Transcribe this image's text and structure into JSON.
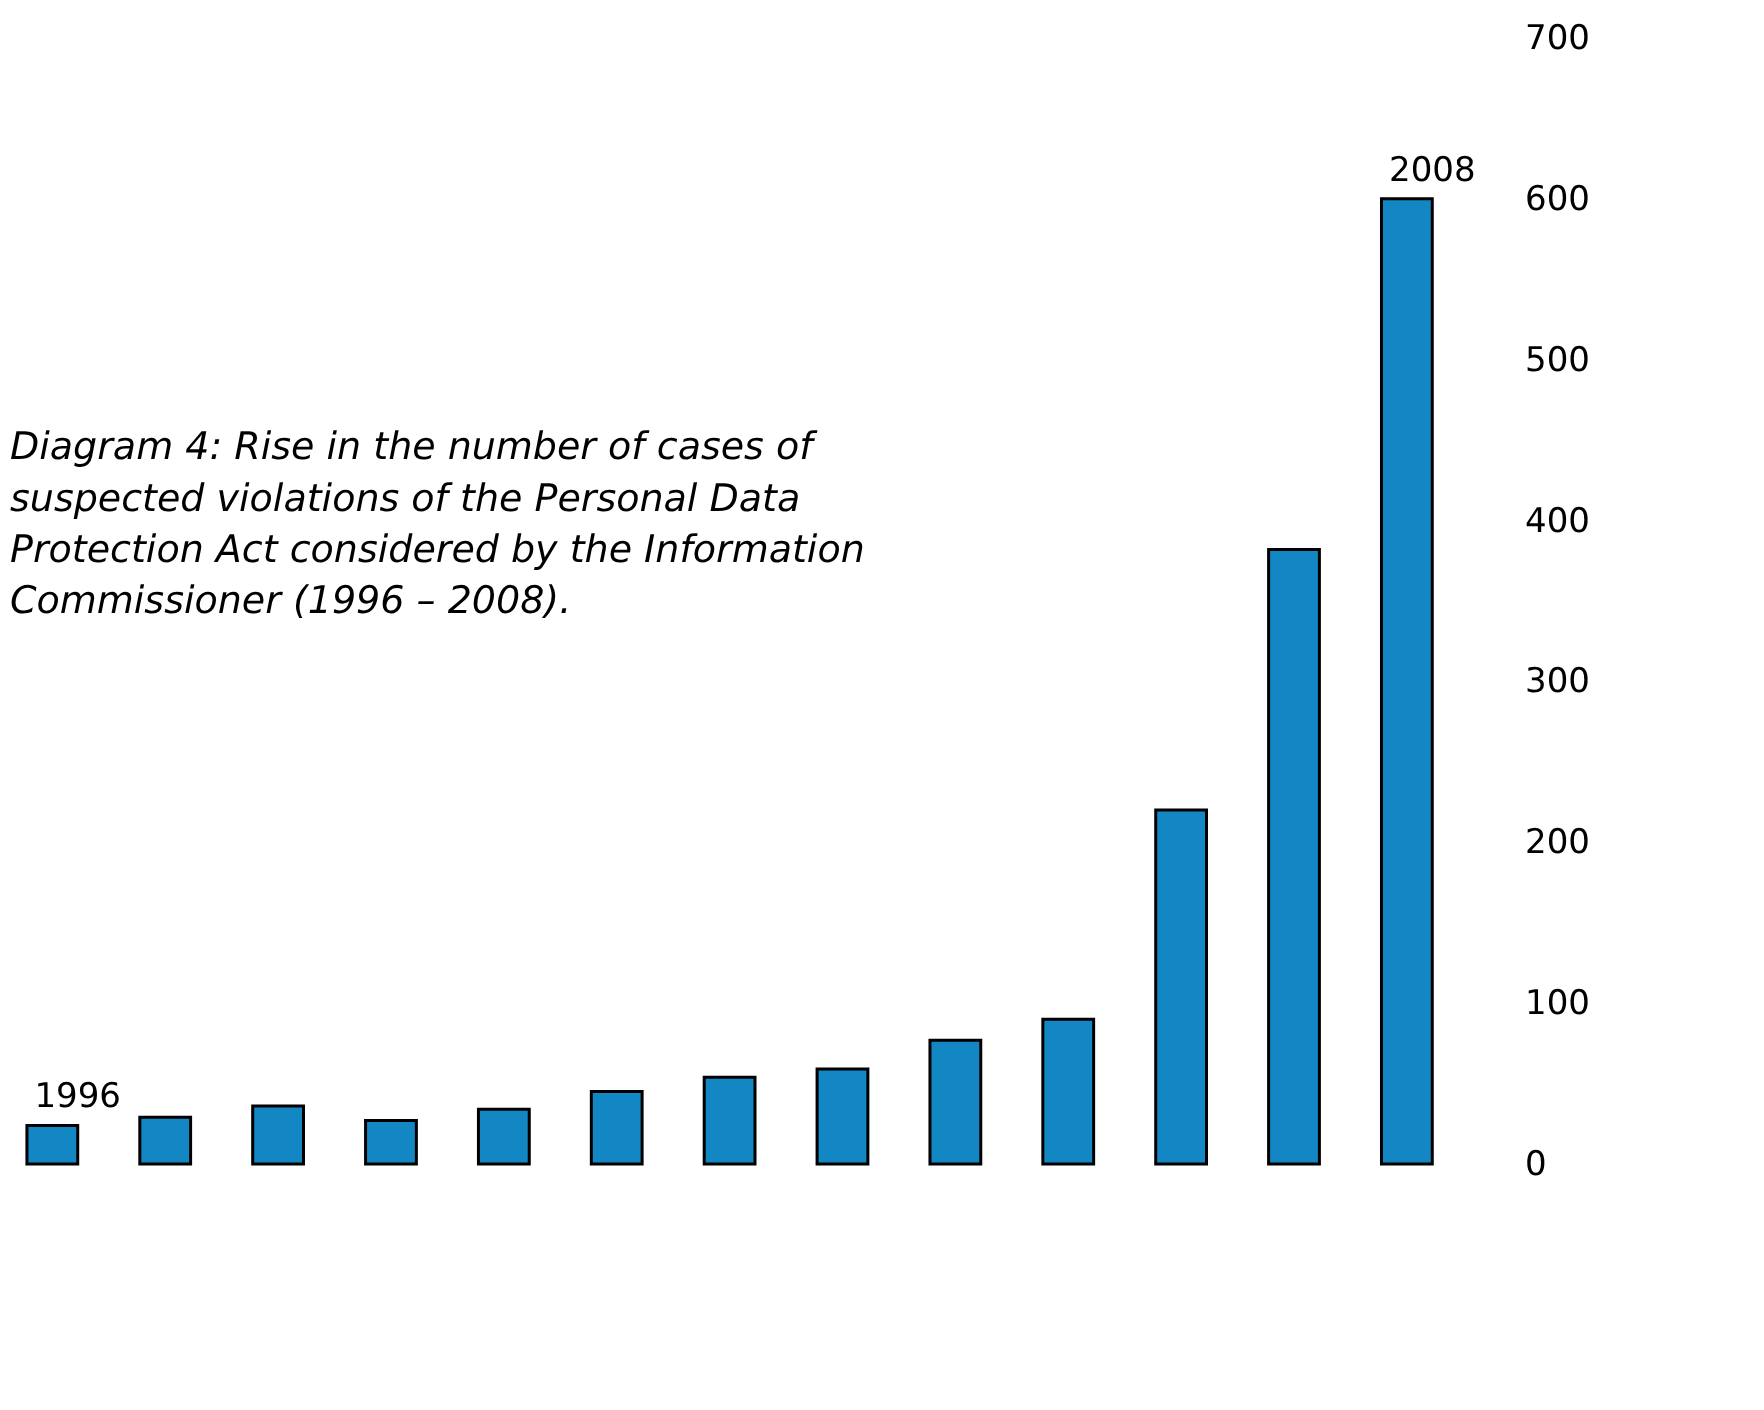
{
  "chart_data": {
    "type": "bar",
    "title": "Diagram 4: Rise in the number of cases of suspected violations of the Personal Data Protection Act considered by the Information Commissioner (1996 – 2008).",
    "categories": [
      "1996",
      null,
      null,
      null,
      null,
      null,
      null,
      null,
      null,
      null,
      null,
      null,
      "2008"
    ],
    "values": [
      24,
      29,
      36,
      27,
      34,
      45,
      54,
      59,
      77,
      90,
      220,
      382,
      600
    ],
    "color": "#1287c3",
    "ylim": [
      0,
      700
    ],
    "yticks": [
      0,
      100,
      200,
      300,
      400,
      500,
      600,
      700
    ],
    "grid": false
  }
}
